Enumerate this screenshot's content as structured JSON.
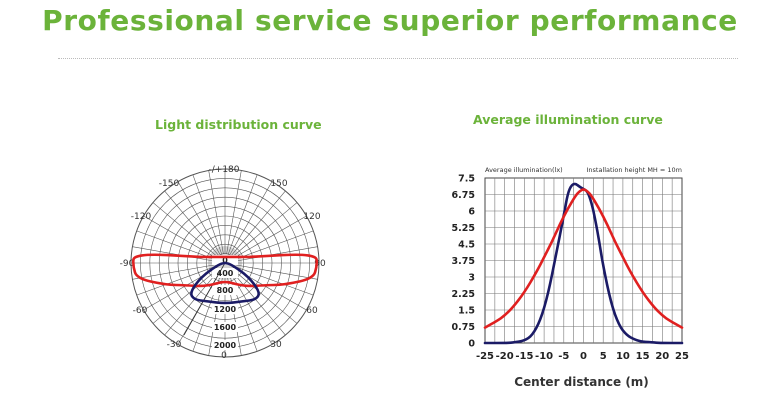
{
  "headline": "Professional service superior performance",
  "colors": {
    "accent": "#6bb33a",
    "red_curve": "#e02020",
    "navy_curve": "#1b1b66"
  },
  "chart_data": [
    {
      "type": "polar",
      "title": "Light distribution curve",
      "angle_labels": [
        "-/+180",
        "-150",
        "150",
        "-120",
        "120",
        "-90",
        "90",
        "-60",
        "60",
        "-30",
        "30",
        "0"
      ],
      "radial_labels": [
        "0",
        "400",
        "800",
        "1200",
        "1600",
        "2000"
      ],
      "rmax": 2000,
      "series": [
        {
          "color": "#e02020",
          "points": [
            [
              -104,
              540
            ],
            [
              -96,
              1950
            ],
            [
              -88,
              1960
            ],
            [
              -80,
              1900
            ],
            [
              -70,
              1350
            ],
            [
              -60,
              950
            ],
            [
              -45,
              700
            ],
            [
              -30,
              530
            ],
            [
              -15,
              430
            ],
            [
              0,
              400
            ],
            [
              15,
              430
            ],
            [
              30,
              530
            ],
            [
              45,
              700
            ],
            [
              60,
              950
            ],
            [
              70,
              1350
            ],
            [
              80,
              1900
            ],
            [
              88,
              1960
            ],
            [
              96,
              1950
            ],
            [
              104,
              540
            ]
          ]
        },
        {
          "color": "#1b1b66",
          "points": [
            [
              -130,
              0
            ],
            [
              -80,
              120
            ],
            [
              -60,
              580
            ],
            [
              -50,
              980
            ],
            [
              -40,
              1020
            ],
            [
              -25,
              900
            ],
            [
              0,
              860
            ],
            [
              25,
              900
            ],
            [
              40,
              1020
            ],
            [
              50,
              980
            ],
            [
              60,
              580
            ],
            [
              80,
              120
            ],
            [
              130,
              0
            ]
          ]
        }
      ]
    },
    {
      "type": "line",
      "title": "Average illumination curve",
      "annotations": [
        "Average illumination(lx)",
        "Installation height MH = 10m"
      ],
      "xlabel": "Center distance (m)",
      "xticks": [
        "-25",
        "-20",
        "-15",
        "-10",
        "-5",
        "0",
        "5",
        "10",
        "15",
        "20",
        "25"
      ],
      "yticks": [
        "0",
        "0.75",
        "1.5",
        "2.25",
        "3",
        "3.75",
        "4.5",
        "5.25",
        "6",
        "6.75",
        "7.5"
      ],
      "xlim": [
        -25,
        25
      ],
      "ylim": [
        0,
        7.5
      ],
      "series": [
        {
          "color": "#1b1b66",
          "x": [
            -25,
            -20,
            -18,
            -15,
            -13,
            -11,
            -9,
            -7,
            -5,
            -4,
            -3,
            -2,
            -1,
            0,
            1,
            2,
            3,
            4,
            5,
            7,
            9,
            11,
            13,
            15,
            18,
            20,
            25
          ],
          "y": [
            0,
            0,
            0.02,
            0.1,
            0.35,
            1.0,
            2.2,
            4.0,
            5.8,
            6.8,
            7.2,
            7.25,
            7.1,
            7.0,
            6.9,
            6.4,
            5.6,
            4.6,
            3.5,
            1.8,
            0.8,
            0.35,
            0.15,
            0.06,
            0.02,
            0,
            0
          ]
        },
        {
          "color": "#e02020",
          "x": [
            -25,
            -22,
            -20,
            -18,
            -15,
            -12,
            -10,
            -8,
            -6,
            -4,
            -2,
            -1,
            0,
            1,
            2,
            4,
            6,
            8,
            10,
            12,
            15,
            18,
            20,
            22,
            25
          ],
          "y": [
            0.7,
            1.0,
            1.25,
            1.6,
            2.3,
            3.2,
            3.9,
            4.6,
            5.4,
            6.1,
            6.7,
            6.9,
            7.0,
            6.9,
            6.7,
            6.1,
            5.4,
            4.6,
            3.9,
            3.2,
            2.3,
            1.6,
            1.25,
            1.0,
            0.7
          ]
        }
      ]
    }
  ]
}
